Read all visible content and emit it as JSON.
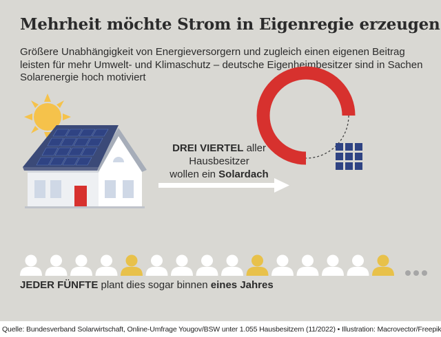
{
  "title": "Mehrheit möchte Strom in Eigenregie erzeugen",
  "subtitle_lines": [
    "Größere Unabhängigkeit von Energieversorgern und zugleich einen eigenen Beitrag",
    "leisten für mehr Umwelt- und Klimaschutz – deutsche Eigenheimbesitzer sind in Sachen",
    "Solarenergie hoch motiviert"
  ],
  "middle_text": {
    "line1_bold": "DREI VIERTEL",
    "line1_rest": " aller",
    "line2": "Hausbesitzer",
    "line3_start": "wollen ein ",
    "line3_bold": "Solardach"
  },
  "bottom_text": {
    "bold_start": "JEDER FÜNFTE",
    "middle": " plant dies sogar binnen ",
    "bold_end": "eines Jahres"
  },
  "footer": "Quelle: Bundesverband Solarwirtschaft, Online-Umfrage Yougov/BSW unter 1.055 Hausbesitzern (11/2022) • Illustration: Macrovector/Freepik.com",
  "colors": {
    "background": "#d9d8d3",
    "ring_red": "#d7312e",
    "highlight_person": "#e8c14a",
    "person": "#ffffff",
    "solar_panel": "#2f4383",
    "sun": "#f5c24b"
  },
  "icons": {
    "house": "house-with-solar-roof-icon",
    "sun": "sun-icon",
    "arrow": "arrow-right-icon",
    "panel": "solar-panel-icon",
    "person": "person-icon",
    "more": "ellipsis-icon"
  },
  "chart_data": [
    {
      "type": "pie",
      "title": "",
      "values": [
        75,
        25
      ],
      "highlighted_fraction": 0.75
    },
    {
      "type": "pictogram",
      "title": "",
      "total_icons": 15,
      "highlighted_positions": [
        5,
        10,
        15
      ],
      "highlighted_fraction": 0.2,
      "more_indicator": true
    }
  ]
}
